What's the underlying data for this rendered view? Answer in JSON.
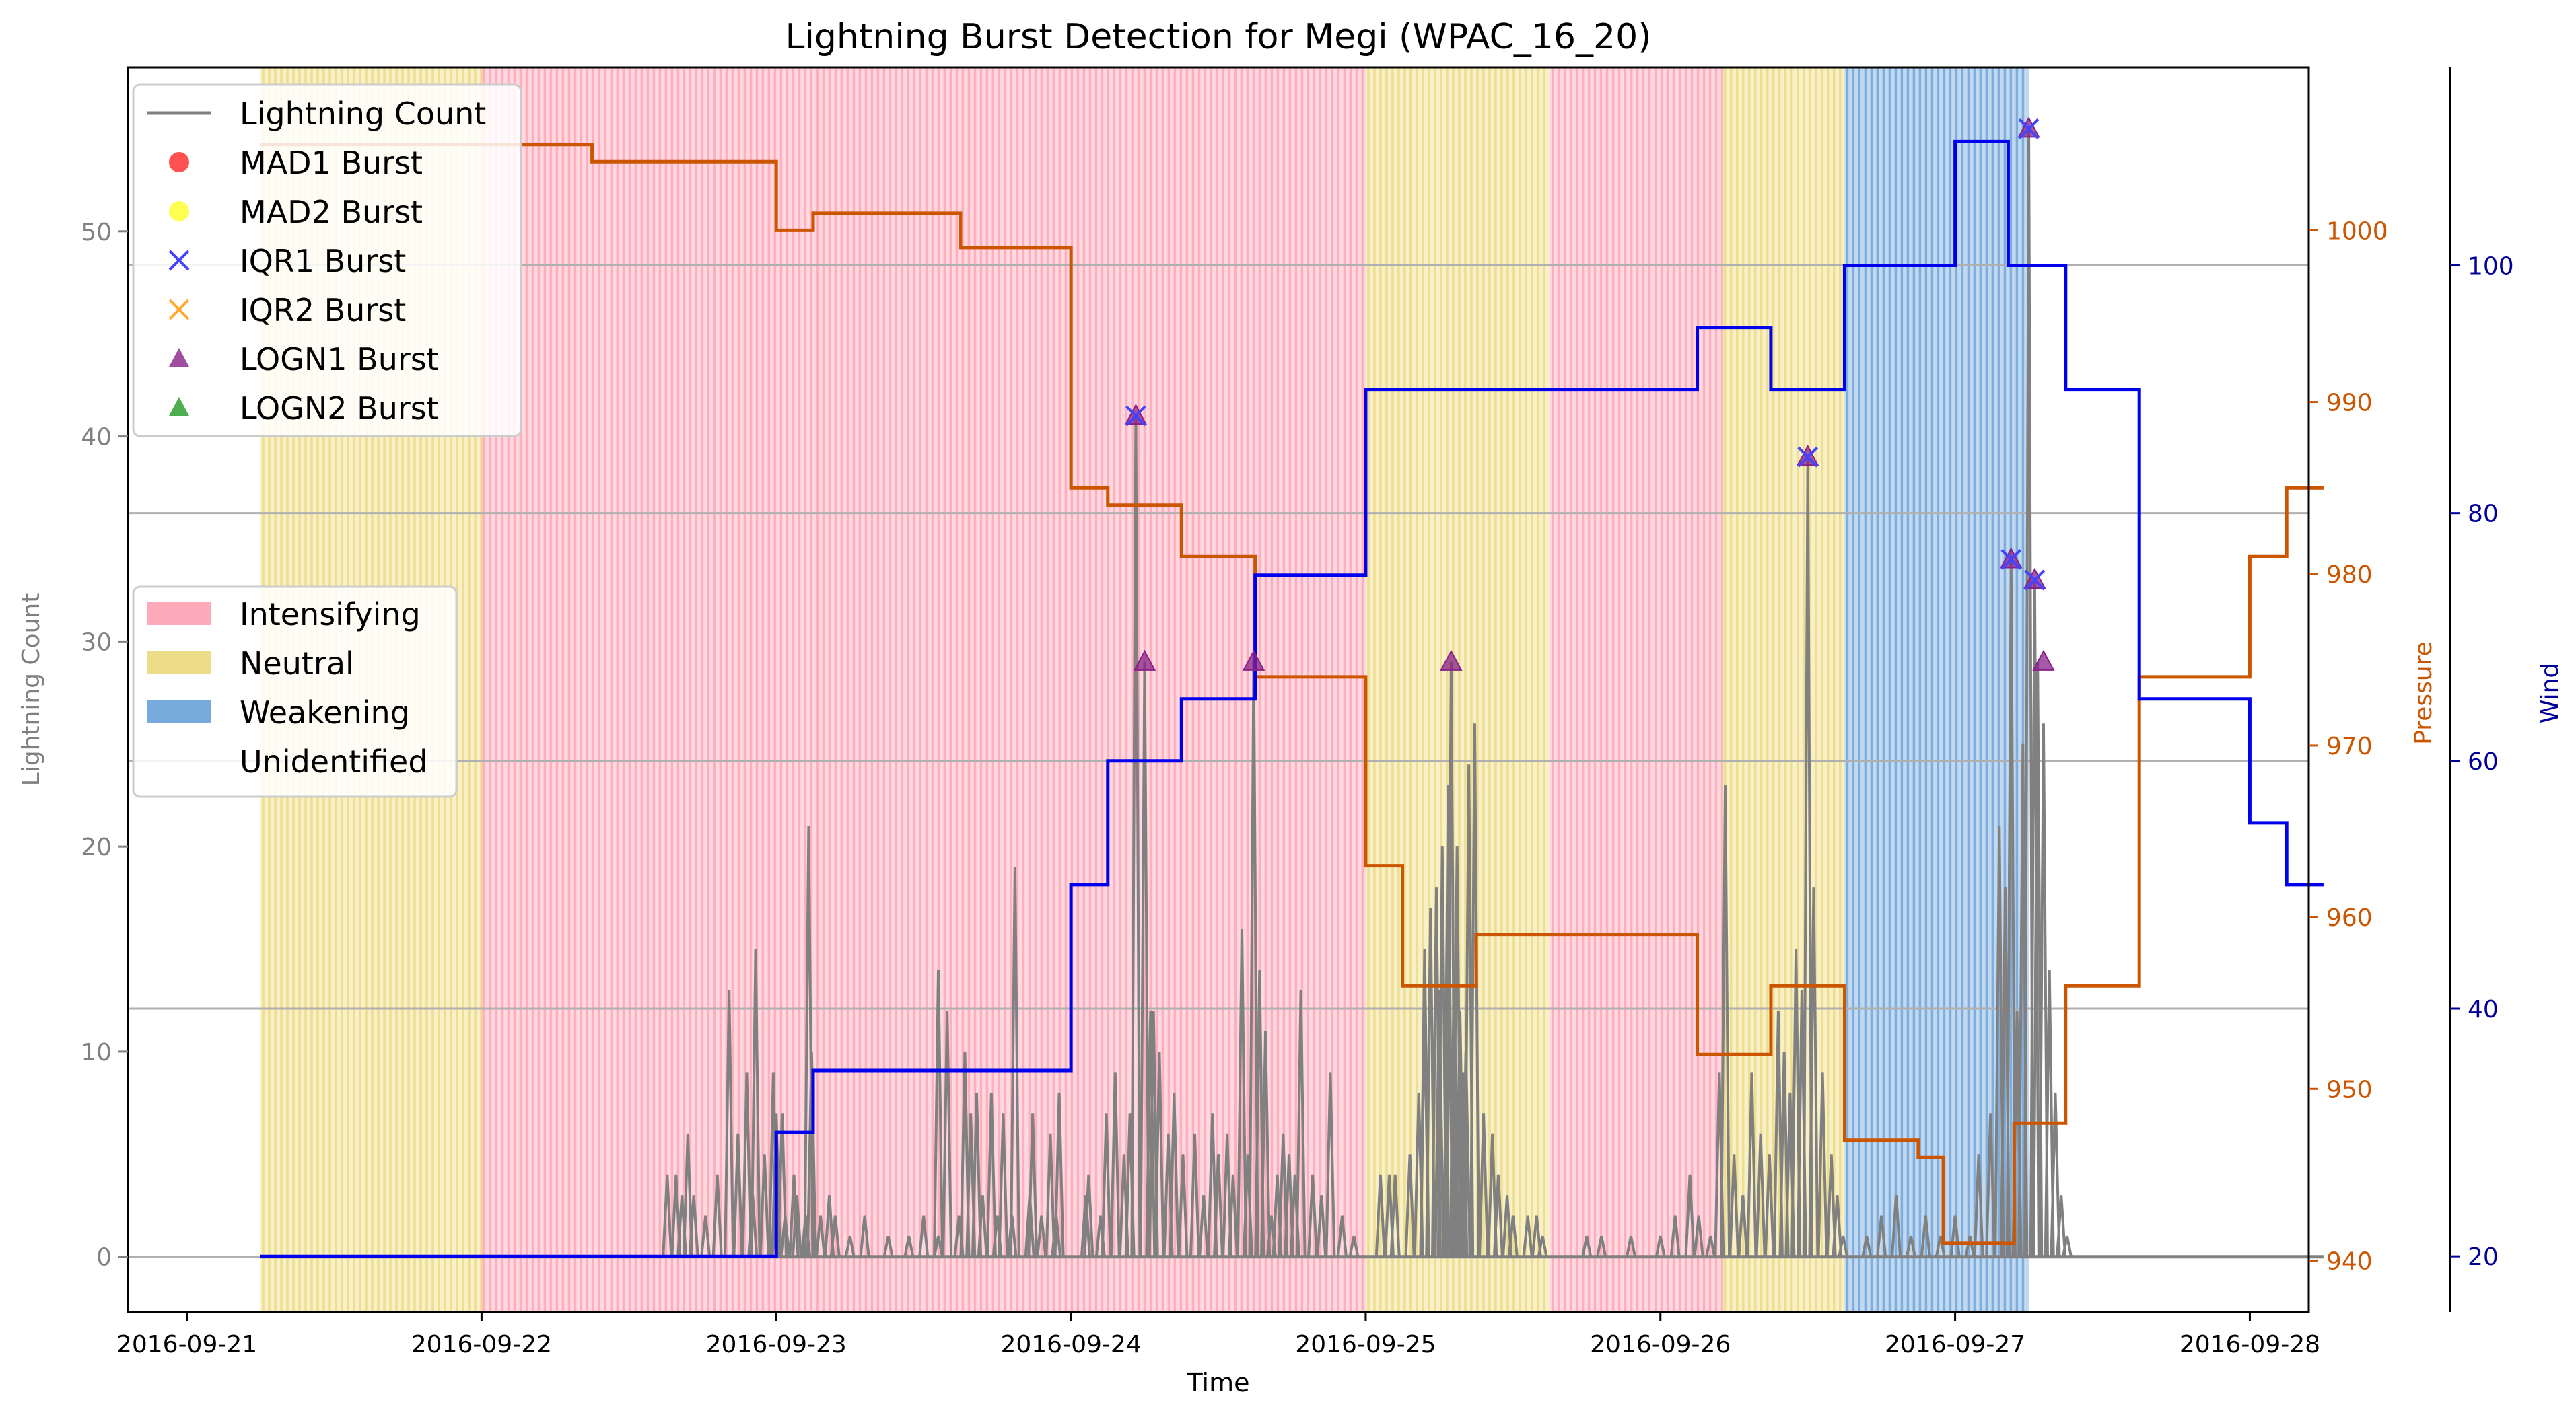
{
  "chart_data": {
    "type": "line",
    "title": "Lightning Burst Detection for Megi (WPAC_16_20)",
    "xlabel": "Time",
    "ylabel_left": "Lightning Count",
    "ylabel_pressure": "Pressure",
    "ylabel_wind": "Wind",
    "x_tick_labels": [
      "2016-09-21",
      "2016-09-22",
      "2016-09-23",
      "2016-09-24",
      "2016-09-25",
      "2016-09-26",
      "2016-09-27",
      "2016-09-28"
    ],
    "x_range_days": [
      -0.2,
      7.2
    ],
    "y_left_range": [
      -2.7,
      58
    ],
    "y_left_ticks": [
      0,
      10,
      20,
      30,
      40,
      50
    ],
    "pressure_range": [
      937,
      1009.5
    ],
    "pressure_ticks": [
      940,
      950,
      960,
      970,
      980,
      990,
      1000
    ],
    "wind_range": [
      15.5,
      116
    ],
    "wind_ticks": [
      20,
      40,
      60,
      80,
      100
    ],
    "grid_wind_values": [
      40,
      60,
      80,
      100
    ],
    "colors": {
      "lightning": "#808080",
      "pressure": "#cc5500",
      "wind": "#0000ee",
      "Intensifying": "#ffaabb",
      "Neutral": "#eedd88",
      "Weakening": "#77aadd"
    },
    "phases": [
      {
        "label": "Neutral",
        "start": 0.25,
        "end": 1.0
      },
      {
        "label": "Intensifying",
        "start": 1.0,
        "end": 4.0
      },
      {
        "label": "Neutral",
        "start": 4.0,
        "end": 4.625
      },
      {
        "label": "Intensifying",
        "start": 4.625,
        "end": 5.21
      },
      {
        "label": "Neutral",
        "start": 5.21,
        "end": 5.625
      },
      {
        "label": "Weakening",
        "start": 5.625,
        "end": 6.25
      }
    ],
    "pressure": [
      [
        0.25,
        1005
      ],
      [
        1.375,
        1005
      ],
      [
        1.375,
        1004
      ],
      [
        2.0,
        1004
      ],
      [
        2.0,
        1000
      ],
      [
        2.125,
        1000
      ],
      [
        2.125,
        1001
      ],
      [
        2.625,
        1001
      ],
      [
        2.625,
        999
      ],
      [
        3.0,
        999
      ],
      [
        3.0,
        985
      ],
      [
        3.125,
        985
      ],
      [
        3.125,
        984
      ],
      [
        3.375,
        984
      ],
      [
        3.375,
        981
      ],
      [
        3.625,
        981
      ],
      [
        3.625,
        974
      ],
      [
        4.0,
        974
      ],
      [
        4.0,
        963
      ],
      [
        4.125,
        963
      ],
      [
        4.125,
        956
      ],
      [
        4.375,
        956
      ],
      [
        4.375,
        959
      ],
      [
        5.125,
        959
      ],
      [
        5.125,
        952
      ],
      [
        5.375,
        952
      ],
      [
        5.375,
        956
      ],
      [
        5.625,
        956
      ],
      [
        5.625,
        947
      ],
      [
        5.875,
        947
      ],
      [
        5.875,
        946
      ],
      [
        5.96,
        946
      ],
      [
        5.96,
        941
      ],
      [
        6.2,
        941
      ],
      [
        6.2,
        948
      ],
      [
        6.375,
        948
      ],
      [
        6.375,
        956
      ],
      [
        6.625,
        956
      ],
      [
        6.625,
        974
      ],
      [
        7.0,
        974
      ],
      [
        7.0,
        981
      ],
      [
        7.125,
        981
      ],
      [
        7.125,
        985
      ],
      [
        7.25,
        985
      ]
    ],
    "wind": [
      [
        0.25,
        20
      ],
      [
        2.0,
        20
      ],
      [
        2.0,
        30
      ],
      [
        2.125,
        30
      ],
      [
        2.125,
        35
      ],
      [
        3.0,
        35
      ],
      [
        3.0,
        50
      ],
      [
        3.125,
        50
      ],
      [
        3.125,
        60
      ],
      [
        3.375,
        60
      ],
      [
        3.375,
        65
      ],
      [
        3.625,
        65
      ],
      [
        3.625,
        75
      ],
      [
        4.0,
        75
      ],
      [
        4.0,
        90
      ],
      [
        5.125,
        90
      ],
      [
        5.125,
        95
      ],
      [
        5.375,
        95
      ],
      [
        5.375,
        90
      ],
      [
        5.625,
        90
      ],
      [
        5.625,
        100
      ],
      [
        6.0,
        100
      ],
      [
        6.0,
        110
      ],
      [
        6.18,
        110
      ],
      [
        6.18,
        100
      ],
      [
        6.375,
        100
      ],
      [
        6.375,
        90
      ],
      [
        6.625,
        90
      ],
      [
        6.625,
        65
      ],
      [
        7.0,
        65
      ],
      [
        7.0,
        55
      ],
      [
        7.125,
        55
      ],
      [
        7.125,
        50
      ],
      [
        7.25,
        50
      ]
    ],
    "lightning_spikes": [
      [
        1.63,
        4
      ],
      [
        1.66,
        4
      ],
      [
        1.72,
        3
      ],
      [
        1.8,
        4
      ],
      [
        1.84,
        13
      ],
      [
        1.87,
        6
      ],
      [
        1.92,
        3
      ],
      [
        1.96,
        5
      ],
      [
        2.0,
        2
      ],
      [
        2.03,
        2
      ],
      [
        2.07,
        3
      ],
      [
        2.1,
        2
      ],
      [
        2.15,
        2
      ],
      [
        2.2,
        2
      ],
      [
        2.25,
        1
      ],
      [
        2.3,
        2
      ],
      [
        2.38,
        1
      ],
      [
        2.45,
        1
      ],
      [
        2.5,
        2
      ],
      [
        2.55,
        1
      ],
      [
        2.62,
        2
      ],
      [
        2.7,
        3
      ],
      [
        2.75,
        2
      ],
      [
        2.8,
        2
      ],
      [
        2.86,
        3
      ],
      [
        2.9,
        2
      ],
      [
        2.95,
        2
      ],
      [
        1.76,
        2
      ],
      [
        2.06,
        4
      ],
      [
        1.99,
        9
      ],
      [
        1.68,
        3
      ],
      [
        1.7,
        6
      ],
      [
        1.9,
        9
      ],
      [
        2.0,
        7
      ],
      [
        2.12,
        10
      ],
      [
        2.18,
        3
      ],
      [
        2.58,
        12
      ],
      [
        2.64,
        10
      ],
      [
        2.66,
        7
      ],
      [
        2.73,
        8
      ],
      [
        2.77,
        7
      ],
      [
        2.81,
        19
      ],
      [
        2.87,
        7
      ],
      [
        2.93,
        6
      ],
      [
        2.96,
        8
      ],
      [
        1.93,
        15
      ],
      [
        2.02,
        7
      ],
      [
        2.11,
        21
      ],
      [
        2.55,
        14
      ],
      [
        2.68,
        8
      ],
      [
        3.06,
        4
      ],
      [
        3.12,
        7
      ],
      [
        3.18,
        5
      ],
      [
        3.22,
        41
      ],
      [
        3.25,
        29
      ],
      [
        3.27,
        12
      ],
      [
        3.3,
        10
      ],
      [
        3.35,
        8
      ],
      [
        3.42,
        6
      ],
      [
        3.48,
        7
      ],
      [
        3.55,
        4
      ],
      [
        3.58,
        16
      ],
      [
        3.62,
        29
      ],
      [
        3.66,
        11
      ],
      [
        3.7,
        4
      ],
      [
        3.74,
        5
      ],
      [
        3.78,
        13
      ],
      [
        3.82,
        4
      ],
      [
        3.88,
        9
      ],
      [
        3.92,
        2
      ],
      [
        3.96,
        1
      ],
      [
        3.05,
        3
      ],
      [
        3.1,
        2
      ],
      [
        3.15,
        9
      ],
      [
        3.2,
        7
      ],
      [
        3.28,
        12
      ],
      [
        3.33,
        6
      ],
      [
        3.38,
        5
      ],
      [
        3.45,
        3
      ],
      [
        3.5,
        5
      ],
      [
        3.53,
        6
      ],
      [
        3.6,
        5
      ],
      [
        3.64,
        14
      ],
      [
        3.68,
        2
      ],
      [
        3.72,
        6
      ],
      [
        3.76,
        4
      ],
      [
        3.85,
        3
      ],
      [
        4.05,
        4
      ],
      [
        4.08,
        4
      ],
      [
        4.1,
        4
      ],
      [
        4.15,
        5
      ],
      [
        4.18,
        8
      ],
      [
        4.2,
        12
      ],
      [
        4.22,
        17
      ],
      [
        4.24,
        18
      ],
      [
        4.26,
        20
      ],
      [
        4.28,
        23
      ],
      [
        4.29,
        29
      ],
      [
        4.3,
        14
      ],
      [
        4.32,
        12
      ],
      [
        4.34,
        10
      ],
      [
        4.35,
        24
      ],
      [
        4.37,
        26
      ],
      [
        4.4,
        7
      ],
      [
        4.43,
        6
      ],
      [
        4.45,
        4
      ],
      [
        4.48,
        3
      ],
      [
        4.5,
        2
      ],
      [
        4.55,
        2
      ],
      [
        4.58,
        2
      ],
      [
        4.6,
        1
      ],
      [
        4.2,
        15
      ],
      [
        4.25,
        13
      ],
      [
        4.31,
        20
      ],
      [
        4.33,
        9
      ],
      [
        4.75,
        1
      ],
      [
        4.8,
        1
      ],
      [
        4.9,
        1
      ],
      [
        5.0,
        1
      ],
      [
        5.05,
        2
      ],
      [
        5.1,
        4
      ],
      [
        5.13,
        2
      ],
      [
        5.17,
        1
      ],
      [
        5.2,
        9
      ],
      [
        5.22,
        23
      ],
      [
        5.25,
        5
      ],
      [
        5.28,
        3
      ],
      [
        5.31,
        9
      ],
      [
        5.34,
        6
      ],
      [
        5.37,
        5
      ],
      [
        5.4,
        12
      ],
      [
        5.42,
        10
      ],
      [
        5.44,
        8
      ],
      [
        5.46,
        15
      ],
      [
        5.48,
        13
      ],
      [
        5.5,
        39
      ],
      [
        5.52,
        18
      ],
      [
        5.55,
        9
      ],
      [
        5.58,
        5
      ],
      [
        5.6,
        3
      ],
      [
        5.62,
        1
      ],
      [
        5.7,
        1
      ],
      [
        5.75,
        2
      ],
      [
        5.8,
        3
      ],
      [
        5.85,
        1
      ],
      [
        5.9,
        2
      ],
      [
        5.95,
        1
      ],
      [
        6.0,
        2
      ],
      [
        6.05,
        1
      ],
      [
        6.08,
        5
      ],
      [
        6.12,
        7
      ],
      [
        6.15,
        21
      ],
      [
        6.17,
        18
      ],
      [
        6.19,
        34
      ],
      [
        6.21,
        12
      ],
      [
        6.23,
        25
      ],
      [
        6.25,
        55
      ],
      [
        6.27,
        33
      ],
      [
        6.28,
        29
      ],
      [
        6.3,
        26
      ],
      [
        6.32,
        14
      ],
      [
        6.34,
        8
      ],
      [
        6.36,
        3
      ],
      [
        6.38,
        1
      ]
    ],
    "bursts": [
      {
        "time": 3.22,
        "value": 41,
        "markers": [
          "IQR1",
          "LOGN1"
        ]
      },
      {
        "time": 3.25,
        "value": 29,
        "markers": [
          "LOGN1"
        ]
      },
      {
        "time": 3.62,
        "value": 29,
        "markers": [
          "LOGN1"
        ]
      },
      {
        "time": 4.29,
        "value": 29,
        "markers": [
          "LOGN1"
        ]
      },
      {
        "time": 5.5,
        "value": 39,
        "markers": [
          "IQR1",
          "LOGN1"
        ]
      },
      {
        "time": 6.19,
        "value": 34,
        "markers": [
          "IQR1",
          "LOGN1"
        ]
      },
      {
        "time": 6.25,
        "value": 55,
        "markers": [
          "IQR1",
          "LOGN1"
        ]
      },
      {
        "time": 6.27,
        "value": 33,
        "markers": [
          "IQR1",
          "LOGN1"
        ]
      },
      {
        "time": 6.3,
        "value": 29,
        "markers": [
          "LOGN1"
        ]
      }
    ],
    "legend_top": [
      {
        "label": "Lightning Count",
        "kind": "line",
        "color": "#808080"
      },
      {
        "label": "MAD1 Burst",
        "kind": "circle",
        "color": "#ff3333"
      },
      {
        "label": "MAD2 Burst",
        "kind": "circle",
        "color": "#ffff33"
      },
      {
        "label": "IQR1 Burst",
        "kind": "x",
        "color": "#4444ff"
      },
      {
        "label": "IQR2 Burst",
        "kind": "x",
        "color": "#ffaa33"
      },
      {
        "label": "LOGN1 Burst",
        "kind": "triangle",
        "color": "#882288"
      },
      {
        "label": "LOGN2 Burst",
        "kind": "triangle",
        "color": "#229922"
      }
    ],
    "legend_phase": [
      {
        "label": "Intensifying",
        "color": "#ffaabb"
      },
      {
        "label": "Neutral",
        "color": "#eedd88"
      },
      {
        "label": "Weakening",
        "color": "#77aadd"
      },
      {
        "label": "Unidentified",
        "color": "none"
      }
    ],
    "legend_placement": "upper-left and center-left",
    "grid": "horizontal grid at wind ticks"
  }
}
